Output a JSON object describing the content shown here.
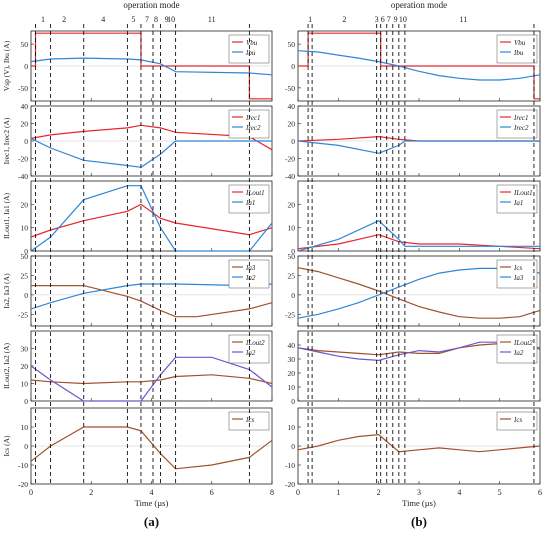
{
  "figure": {
    "mode_title": "operation mode",
    "xlabel": "Time (µs)"
  },
  "chart_data": [
    {
      "type": "line",
      "panel_label": "(a)",
      "xlim": [
        0,
        8
      ],
      "xticks": [
        "0",
        "2",
        "4",
        "6",
        "8"
      ],
      "mode_lines": [
        0.15,
        0.65,
        1.75,
        3.2,
        3.65,
        4.05,
        4.3,
        4.8,
        7.25
      ],
      "mode_labels": [
        {
          "text": "1",
          "x": 0.4
        },
        {
          "text": "2",
          "x": 1.1
        },
        {
          "text": "4",
          "x": 2.4
        },
        {
          "text": "5",
          "x": 3.4
        },
        {
          "text": "7",
          "x": 3.85
        },
        {
          "text": "8",
          "x": 4.15
        },
        {
          "text": "9",
          "x": 4.5
        },
        {
          "text": "10",
          "x": 4.65
        },
        {
          "text": "11",
          "x": 6.0
        }
      ],
      "subplots": [
        {
          "ylabel": "Vsp (V), Ibu (A)",
          "ylim": [
            -80,
            80
          ],
          "yticks": [
            -50,
            0,
            50
          ],
          "series": [
            {
              "name": "Vbu",
              "color": "#e8262c",
              "x": [
                0,
                0.15,
                0.15,
                3.65,
                3.65,
                7.25,
                7.25,
                8
              ],
              "y": [
                0,
                0,
                75,
                75,
                0,
                0,
                -75,
                -75
              ]
            },
            {
              "name": "Ibu",
              "color": "#2e86d8",
              "x": [
                0,
                0.65,
                1.75,
                3.2,
                3.65,
                4.3,
                4.8,
                7.25,
                8
              ],
              "y": [
                10,
                16,
                18,
                16,
                14,
                5,
                -13,
                -16,
                -20
              ]
            }
          ]
        },
        {
          "ylabel": "Irec1, Irec2 (A)",
          "ylim": [
            -40,
            40
          ],
          "yticks": [
            -40,
            -20,
            0,
            20,
            40
          ],
          "series": [
            {
              "name": "Irec1",
              "color": "#e8262c",
              "x": [
                0,
                0.65,
                1.75,
                3.2,
                3.65,
                4.3,
                4.8,
                7.25,
                8
              ],
              "y": [
                3,
                7,
                11,
                15,
                18,
                15,
                10,
                5,
                -10
              ]
            },
            {
              "name": "Irec2",
              "color": "#2e86d8",
              "x": [
                0,
                0.65,
                1.75,
                3.2,
                3.65,
                4.3,
                4.8,
                7.25,
                8
              ],
              "y": [
                3,
                -8,
                -22,
                -28,
                -30,
                -15,
                0,
                0,
                0
              ]
            }
          ]
        },
        {
          "ylabel": "ILout1, Ia1 (A)",
          "ylim": [
            0,
            30
          ],
          "yticks": [
            0,
            10,
            20
          ],
          "series": [
            {
              "name": "ILout1",
              "color": "#e8262c",
              "x": [
                0,
                0.65,
                1.75,
                3.2,
                3.65,
                4.3,
                4.8,
                7.25,
                8
              ],
              "y": [
                6,
                9,
                13,
                17,
                20,
                14,
                12,
                7,
                10
              ]
            },
            {
              "name": "Ia1",
              "color": "#2e86d8",
              "x": [
                0,
                0.65,
                1.75,
                3.2,
                3.65,
                4.3,
                4.8,
                7.25,
                8
              ],
              "y": [
                0,
                6,
                22,
                28,
                28,
                10,
                0,
                0,
                12
              ]
            }
          ]
        },
        {
          "ylabel": "Ia2, Ia3 (A)",
          "ylim": [
            -40,
            50
          ],
          "yticks": [
            -25,
            0,
            25,
            50
          ],
          "series": [
            {
              "name": "Ia3",
              "color": "#a0522d",
              "x": [
                0,
                0.65,
                1.75,
                3.2,
                3.65,
                4.3,
                4.8,
                5.5,
                7.25,
                8
              ],
              "y": [
                12,
                12,
                12,
                -2,
                -8,
                -20,
                -28,
                -28,
                -18,
                -10
              ]
            },
            {
              "name": "Ia2",
              "color": "#2e86d8",
              "x": [
                0,
                0.65,
                1.75,
                3.2,
                3.65,
                4.3,
                4.8,
                7.25,
                8
              ],
              "y": [
                -18,
                -10,
                2,
                12,
                14,
                14,
                14,
                12,
                14
              ]
            }
          ]
        },
        {
          "ylabel": "ILout2, Ia2 (A)",
          "ylim": [
            0,
            40
          ],
          "yticks": [
            0,
            10,
            20,
            30
          ],
          "series": [
            {
              "name": "ILout2",
              "color": "#a0522d",
              "x": [
                0,
                0.65,
                1.75,
                3.2,
                3.65,
                4.3,
                4.8,
                6,
                7.25,
                8
              ],
              "y": [
                12,
                11,
                10,
                11,
                11,
                12,
                14,
                15,
                13,
                10
              ]
            },
            {
              "name": "Ia2",
              "color": "#6e56cf",
              "x": [
                0,
                0.65,
                1.75,
                3.2,
                3.65,
                4.3,
                4.8,
                6,
                7.25,
                8
              ],
              "y": [
                20,
                12,
                0,
                0,
                0,
                15,
                25,
                25,
                18,
                8
              ]
            }
          ]
        },
        {
          "ylabel": "Ics (A)",
          "ylim": [
            -20,
            20
          ],
          "yticks": [
            -20,
            -10,
            0,
            10
          ],
          "series": [
            {
              "name": "Ics",
              "color": "#a0522d",
              "x": [
                0,
                0.65,
                1.75,
                3.2,
                3.65,
                4.3,
                4.8,
                6,
                7.25,
                8
              ],
              "y": [
                -8,
                0,
                10,
                10,
                8,
                -4,
                -12,
                -10,
                -6,
                3
              ]
            }
          ]
        }
      ]
    },
    {
      "type": "line",
      "panel_label": "(b)",
      "xlim": [
        0,
        6
      ],
      "xticks": [
        "0",
        "1",
        "2",
        "3",
        "4",
        "5",
        "6"
      ],
      "mode_lines": [
        0.25,
        0.35,
        1.95,
        2.05,
        2.2,
        2.35,
        2.5,
        2.65,
        5.85
      ],
      "mode_labels": [
        {
          "text": "1",
          "x": 0.3
        },
        {
          "text": "2",
          "x": 1.15
        },
        {
          "text": "3",
          "x": 1.95
        },
        {
          "text": "6",
          "x": 2.1
        },
        {
          "text": "7",
          "x": 2.25
        },
        {
          "text": "9",
          "x": 2.42
        },
        {
          "text": "10",
          "x": 2.6
        },
        {
          "text": "11",
          "x": 4.1
        }
      ],
      "subplots": [
        {
          "ylabel": "",
          "ylim": [
            -80,
            80
          ],
          "yticks": [
            -50,
            0,
            50
          ],
          "series": [
            {
              "name": "Vbu",
              "color": "#e8262c",
              "x": [
                0,
                0.25,
                0.25,
                2.05,
                2.05,
                5.85,
                5.85,
                6
              ],
              "y": [
                0,
                0,
                75,
                75,
                0,
                0,
                -75,
                -75
              ]
            },
            {
              "name": "Ibu",
              "color": "#2e86d8",
              "x": [
                0,
                0.5,
                1.0,
                1.5,
                2.0,
                2.5,
                3.0,
                3.5,
                4.0,
                4.5,
                5.0,
                5.5,
                6.0
              ],
              "y": [
                35,
                32,
                25,
                18,
                10,
                0,
                -12,
                -22,
                -28,
                -32,
                -32,
                -28,
                -20
              ]
            }
          ]
        },
        {
          "ylabel": "",
          "ylim": [
            -40,
            40
          ],
          "yticks": [
            -40,
            -20,
            0,
            20,
            40
          ],
          "series": [
            {
              "name": "Irec1",
              "color": "#e8262c",
              "x": [
                0,
                1.0,
                2.0,
                2.5,
                3.0,
                4.0,
                5.0,
                6.0
              ],
              "y": [
                0,
                2,
                5,
                2,
                0,
                0,
                0,
                0
              ]
            },
            {
              "name": "Irec2",
              "color": "#2e86d8",
              "x": [
                0,
                1.0,
                2.0,
                2.5,
                2.65,
                3.0,
                4.0,
                6.0
              ],
              "y": [
                0,
                -5,
                -14,
                -5,
                0,
                0,
                0,
                0
              ]
            }
          ]
        },
        {
          "ylabel": "",
          "ylim": [
            0,
            30
          ],
          "yticks": [
            0,
            10,
            20
          ],
          "series": [
            {
              "name": "ILout1",
              "color": "#e8262c",
              "x": [
                0,
                1.0,
                2.0,
                2.5,
                3.0,
                4.0,
                5.0,
                6.0
              ],
              "y": [
                1,
                3,
                7,
                4,
                3,
                3,
                2,
                1
              ]
            },
            {
              "name": "Ia1",
              "color": "#2e86d8",
              "x": [
                0,
                1.0,
                2.0,
                2.5,
                2.65,
                3.0,
                4.0,
                6.0
              ],
              "y": [
                0,
                5,
                13,
                5,
                2,
                2,
                2,
                2
              ]
            }
          ]
        },
        {
          "ylabel": "",
          "ylim": [
            -40,
            50
          ],
          "yticks": [
            -25,
            0,
            25,
            50
          ],
          "series": [
            {
              "name": "Ics",
              "color": "#a0522d",
              "x": [
                0,
                0.5,
                1.0,
                1.5,
                2.0,
                2.5,
                3.0,
                3.5,
                4.0,
                4.5,
                5.0,
                5.5,
                6.0
              ],
              "y": [
                35,
                30,
                22,
                14,
                5,
                -5,
                -15,
                -22,
                -28,
                -30,
                -30,
                -28,
                -20
              ]
            },
            {
              "name": "Ia3",
              "color": "#2e86d8",
              "x": [
                0,
                0.5,
                1.0,
                1.5,
                2.0,
                2.5,
                3.0,
                3.5,
                4.0,
                4.5,
                5.0,
                5.5,
                6.0
              ],
              "y": [
                -30,
                -25,
                -18,
                -10,
                0,
                10,
                20,
                28,
                32,
                34,
                34,
                32,
                28
              ]
            }
          ]
        },
        {
          "ylabel": "",
          "ylim": [
            0,
            50
          ],
          "yticks": [
            0,
            10,
            20,
            30,
            40
          ],
          "series": [
            {
              "name": "ILout2",
              "color": "#a0522d",
              "x": [
                0,
                0.5,
                1.0,
                1.5,
                2.0,
                2.5,
                3.0,
                3.5,
                4.0,
                4.5,
                5.0,
                5.5,
                6.0
              ],
              "y": [
                38,
                36,
                35,
                34,
                33,
                35,
                34,
                34,
                38,
                40,
                41,
                40,
                38
              ]
            },
            {
              "name": "Ia2",
              "color": "#6e56cf",
              "x": [
                0,
                0.5,
                1.0,
                1.5,
                2.0,
                2.5,
                3.0,
                3.5,
                4.0,
                4.5,
                5.0,
                5.5,
                6.0
              ],
              "y": [
                38,
                35,
                32,
                30,
                29,
                33,
                36,
                35,
                38,
                42,
                42,
                40,
                37
              ]
            }
          ]
        },
        {
          "ylabel": "",
          "ylim": [
            -20,
            20
          ],
          "yticks": [
            -20,
            -10,
            0,
            10
          ],
          "series": [
            {
              "name": "Ics",
              "color": "#a0522d",
              "x": [
                0,
                0.5,
                1.0,
                1.5,
                2.0,
                2.5,
                3.0,
                3.5,
                4.0,
                4.5,
                5.0,
                5.5,
                6.0
              ],
              "y": [
                -2,
                0,
                3,
                5,
                6,
                -3,
                -2,
                -1,
                -2,
                -3,
                -2,
                -1,
                0
              ]
            }
          ]
        }
      ]
    }
  ]
}
